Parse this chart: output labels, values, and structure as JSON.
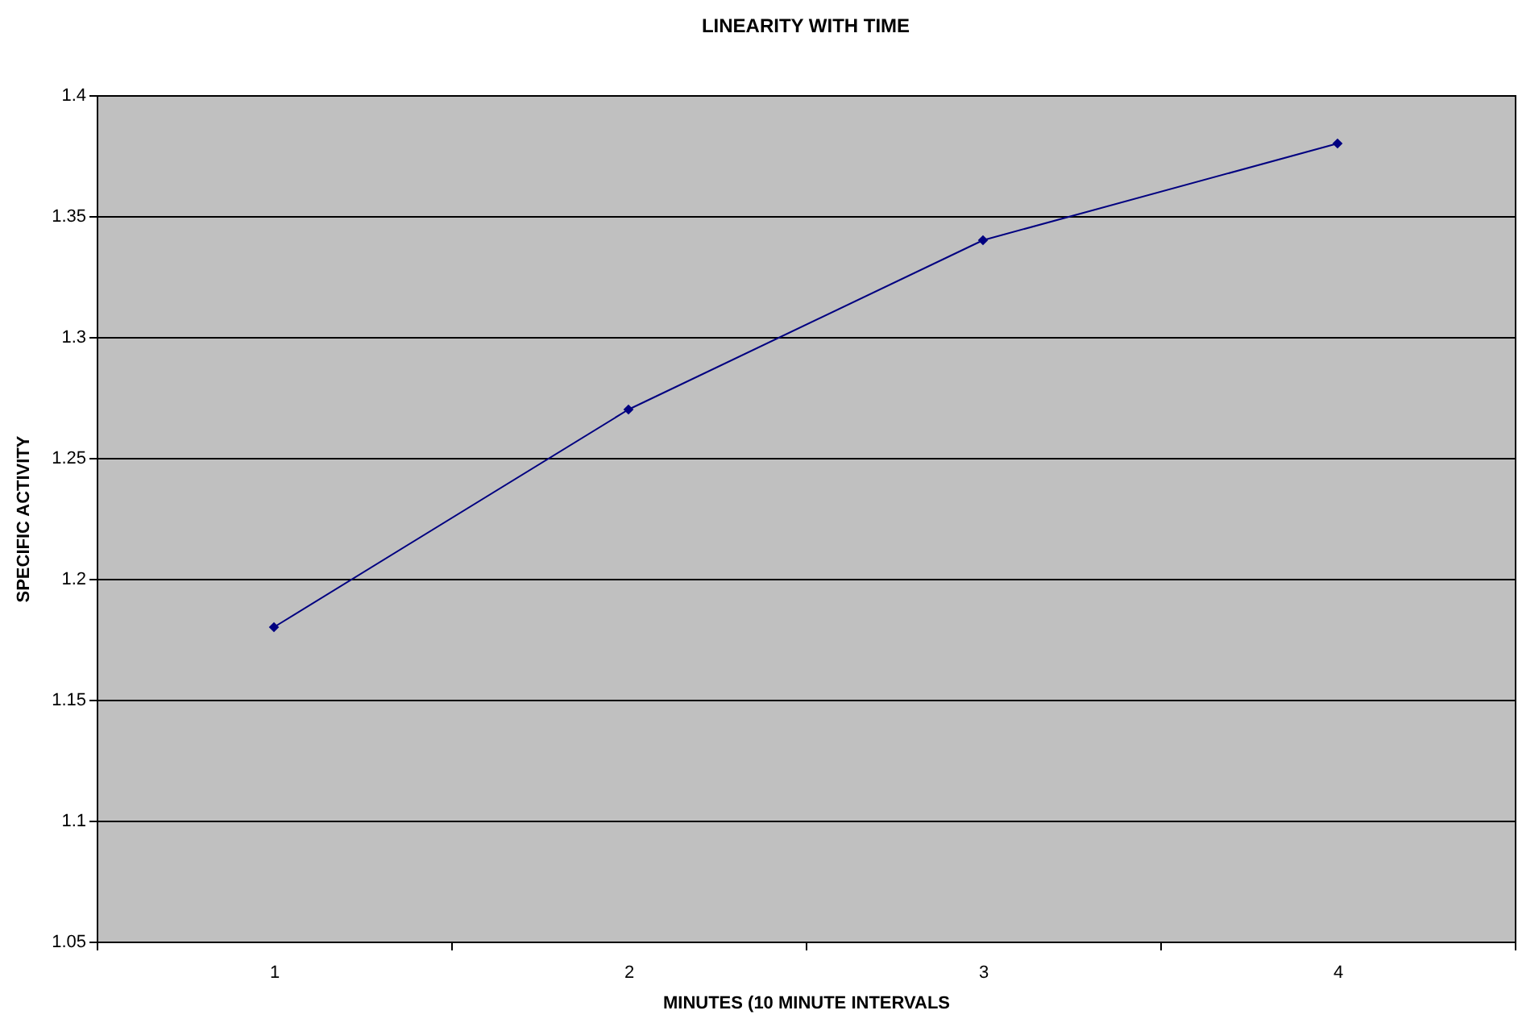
{
  "chart_data": {
    "type": "line",
    "title": "LINEARITY WITH TIME",
    "xlabel": "MINUTES (10 MINUTE INTERVALS",
    "ylabel": "SPECIFIC ACTIVITY",
    "categories": [
      "1",
      "2",
      "3",
      "4"
    ],
    "series": [
      {
        "color": "#000080",
        "values": [
          1.18,
          1.27,
          1.34,
          1.38
        ]
      }
    ],
    "ylim": [
      1.05,
      1.4
    ],
    "yticks": [
      1.05,
      1.1,
      1.15,
      1.2,
      1.25,
      1.3,
      1.35,
      1.4
    ],
    "grid": "y",
    "marker": "diamond",
    "line_style": "solid"
  }
}
